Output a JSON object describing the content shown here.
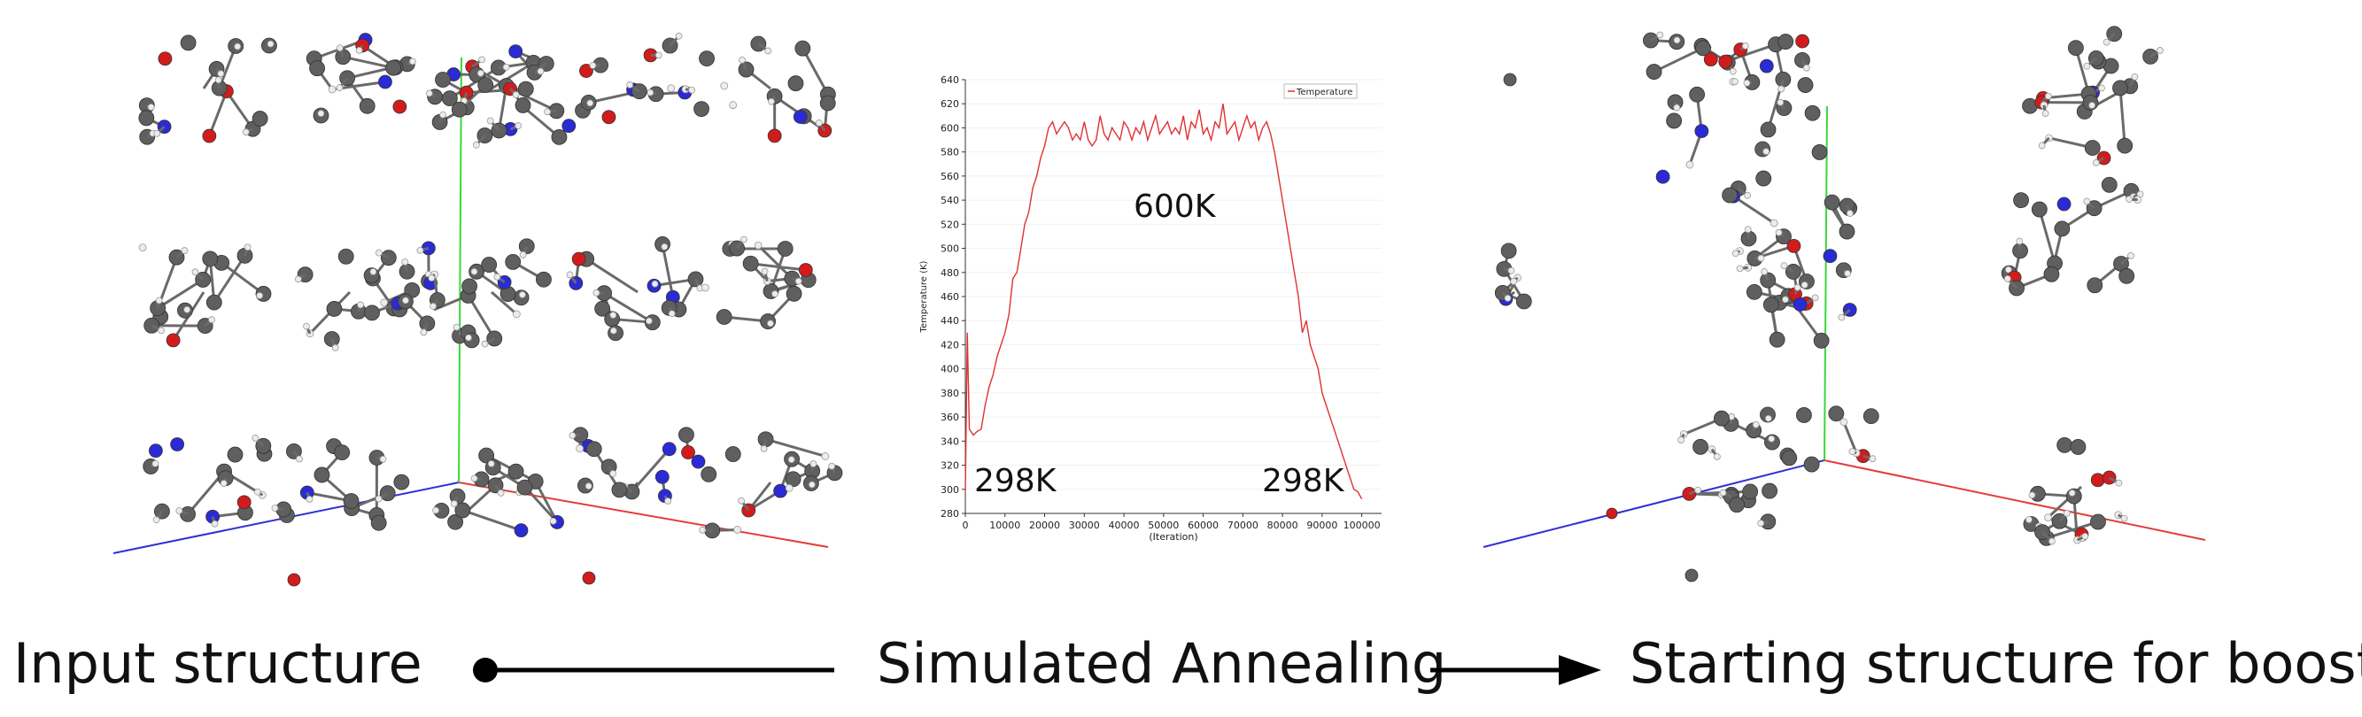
{
  "captions": {
    "input": "Input structure",
    "method": "Simulated Annealing",
    "output": "Starting structure for boost"
  },
  "colors": {
    "carbon": "#5f5f5f",
    "nitrogen": "#2b2bd6",
    "oxygen": "#d21c1c",
    "hydrogen": "#ececec",
    "axis_x": "#e53b3b",
    "axis_y": "#3bd63b",
    "axis_z": "#2f2fd6",
    "curve": "#e03131"
  },
  "chart_data": {
    "type": "line",
    "title": "",
    "xlabel": "(Iteration)",
    "ylabel": "Temperature (K)",
    "xlim": [
      0,
      105000
    ],
    "ylim": [
      280,
      640
    ],
    "xticks": [
      0,
      10000,
      20000,
      30000,
      40000,
      50000,
      60000,
      70000,
      80000,
      90000,
      100000
    ],
    "yticks": [
      280,
      300,
      320,
      340,
      360,
      380,
      400,
      420,
      440,
      460,
      480,
      500,
      520,
      540,
      560,
      580,
      600,
      620,
      640
    ],
    "legend": [
      "Temperature"
    ],
    "legend_position": "top-right",
    "annotations": [
      "298K",
      "600K",
      "298K"
    ],
    "series": [
      {
        "name": "Temperature",
        "x": [
          0,
          500,
          1000,
          2000,
          3000,
          4000,
          5000,
          6000,
          7000,
          8000,
          9000,
          10000,
          11000,
          12000,
          13000,
          14000,
          15000,
          16000,
          17000,
          18000,
          19000,
          20000,
          21000,
          22000,
          23000,
          24000,
          25000,
          26000,
          27000,
          28000,
          29000,
          30000,
          31000,
          32000,
          33000,
          34000,
          35000,
          36000,
          37000,
          38000,
          39000,
          40000,
          41000,
          42000,
          43000,
          44000,
          45000,
          46000,
          47000,
          48000,
          49000,
          50000,
          51000,
          52000,
          53000,
          54000,
          55000,
          56000,
          57000,
          58000,
          59000,
          60000,
          61000,
          62000,
          63000,
          64000,
          65000,
          66000,
          67000,
          68000,
          69000,
          70000,
          71000,
          72000,
          73000,
          74000,
          75000,
          76000,
          77000,
          78000,
          79000,
          80000,
          81000,
          82000,
          83000,
          84000,
          85000,
          86000,
          87000,
          88000,
          89000,
          90000,
          91000,
          92000,
          93000,
          94000,
          95000,
          96000,
          97000,
          98000,
          99000,
          100000
        ],
        "y": [
          298,
          430,
          350,
          345,
          348,
          350,
          370,
          385,
          395,
          410,
          420,
          430,
          445,
          475,
          480,
          500,
          520,
          530,
          550,
          560,
          575,
          585,
          600,
          605,
          595,
          600,
          605,
          600,
          590,
          595,
          590,
          605,
          590,
          585,
          590,
          610,
          595,
          590,
          600,
          595,
          590,
          605,
          600,
          590,
          600,
          595,
          605,
          590,
          600,
          610,
          595,
          600,
          605,
          595,
          600,
          595,
          610,
          590,
          605,
          600,
          615,
          595,
          600,
          590,
          605,
          600,
          620,
          595,
          600,
          605,
          590,
          600,
          610,
          600,
          605,
          590,
          600,
          605,
          595,
          580,
          560,
          540,
          520,
          500,
          480,
          460,
          430,
          440,
          420,
          410,
          400,
          380,
          370,
          360,
          350,
          340,
          330,
          320,
          310,
          300,
          298,
          292
        ]
      }
    ]
  }
}
